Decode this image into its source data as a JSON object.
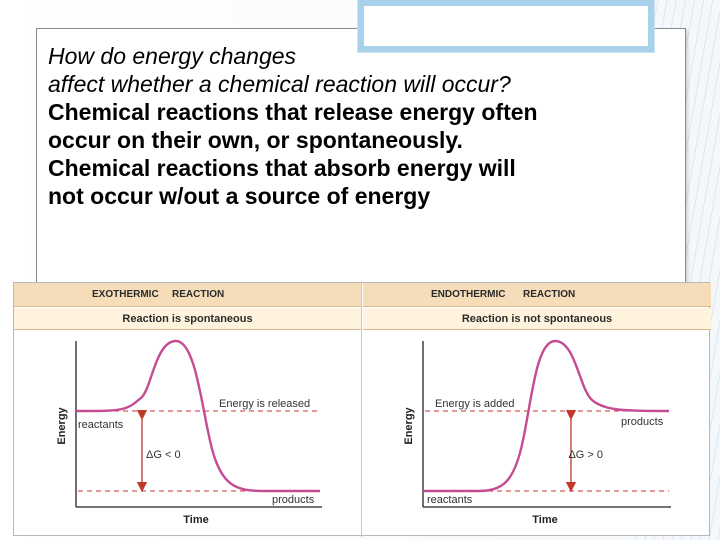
{
  "slide": {
    "question_line1": "How do energy changes",
    "question_line2": "affect whether a chemical reaction will occur?",
    "bold_line1": "Chemical reactions that release energy often",
    "bold_line2": "occur on their own, or spontaneously.",
    "bold_line3": "Chemical reactions that absorb energy will",
    "bold_line4": "not occur w/out a source of energy"
  },
  "colors": {
    "curve": "#c64b95",
    "arrow": "#c0392b",
    "dashed": "#cc3333",
    "header_bg": "#f4ddb8",
    "subheader_bg": "#fff3de"
  },
  "diagram": {
    "left": {
      "header_part1": "EXOTHERMIC",
      "header_part2": "REACTION",
      "subheader": "Reaction is spontaneous",
      "y_axis": "Energy",
      "x_axis": "Time",
      "energy_label": "Energy is released",
      "start_label": "reactants",
      "end_label": "products",
      "delta_g": "ΔG < 0"
    },
    "right": {
      "header_part1": "ENDOTHERMIC",
      "header_part2": "REACTION",
      "subheader": "Reaction is not spontaneous",
      "y_axis": "Energy",
      "x_axis": "Time",
      "energy_label": "Energy is added",
      "start_label": "reactants",
      "end_label": "products",
      "delta_g": "ΔG > 0"
    }
  }
}
